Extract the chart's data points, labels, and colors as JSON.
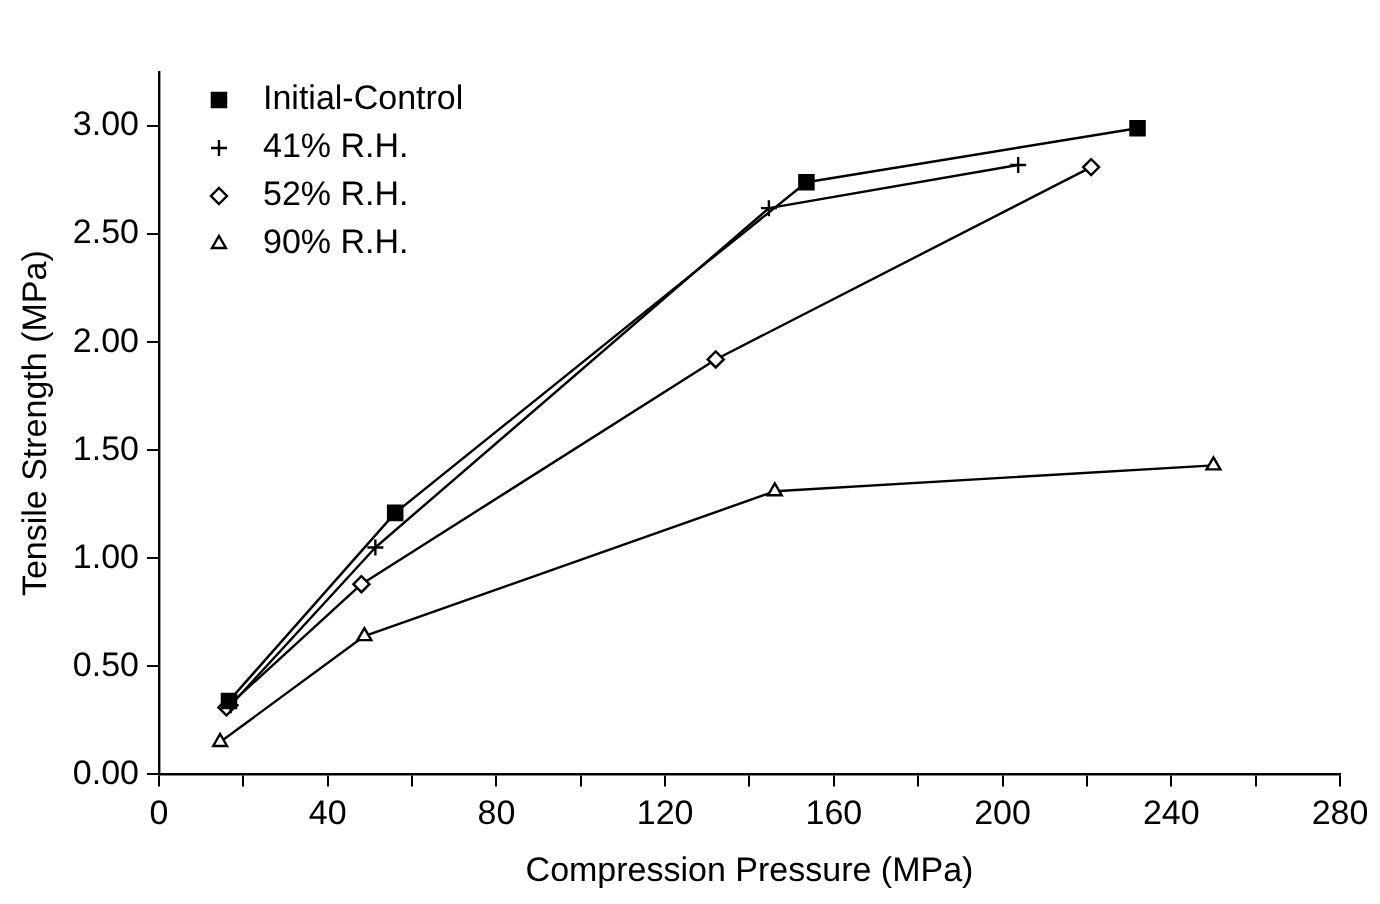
{
  "chart_data": {
    "type": "line",
    "xlabel": "Compression Pressure (MPa)",
    "ylabel": "Tensile Strength (MPa)",
    "xlim": [
      0,
      280
    ],
    "ylim": [
      0,
      3.25
    ],
    "xticks": [
      0,
      {
        "value": 20,
        "label": null
      },
      40,
      {
        "value": 60,
        "label": null
      },
      80,
      {
        "value": 100,
        "label": null
      },
      120,
      {
        "value": 140,
        "label": null
      },
      160,
      {
        "value": 180,
        "label": null
      },
      200,
      {
        "value": 220,
        "label": null
      },
      240,
      {
        "value": 260,
        "label": null
      },
      280
    ],
    "yticks": [
      {
        "value": 0,
        "label": "0.00"
      },
      {
        "value": 0.5,
        "label": "0.50"
      },
      {
        "value": 1,
        "label": "1.00"
      },
      {
        "value": 1.5,
        "label": "1.50"
      },
      {
        "value": 2,
        "label": "2.00"
      },
      {
        "value": 2.5,
        "label": "2.50"
      },
      {
        "value": 3,
        "label": "3.00"
      }
    ],
    "grid": false,
    "legend": "top left",
    "line_style": "solid",
    "series": [
      {
        "name": "Initial-Control",
        "color": "#000000",
        "marker": "square",
        "x": [
          16.6,
          56,
          153.5,
          232
        ],
        "values": [
          0.34,
          1.21,
          2.74,
          2.99
        ]
      },
      {
        "name": "41% R.H.",
        "color": "#000000",
        "marker": "cross",
        "x": [
          17,
          51.3,
          144.6,
          203.7
        ],
        "values": [
          0.32,
          1.05,
          2.62,
          2.82
        ]
      },
      {
        "name": "52% R.H.",
        "color": "#000000",
        "marker": "diamond",
        "x": [
          16,
          48,
          132,
          221
        ],
        "values": [
          0.31,
          0.88,
          1.92,
          2.81
        ]
      },
      {
        "name": "90% R.H.",
        "color": "#000000",
        "marker": "triangle",
        "x": [
          14.5,
          48.7,
          146,
          250
        ],
        "values": [
          0.15,
          0.64,
          1.31,
          1.43
        ]
      }
    ]
  }
}
